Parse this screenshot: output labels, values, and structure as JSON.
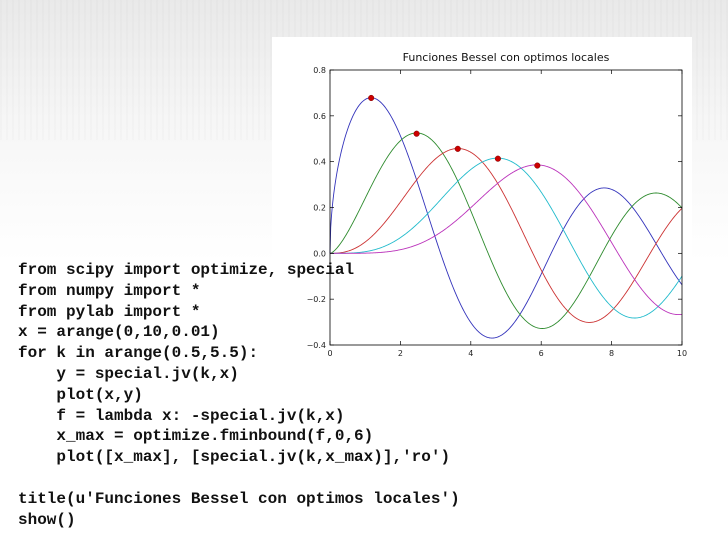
{
  "code_lines": [
    "from scipy import optimize, special",
    "from numpy import *",
    "from pylab import *",
    "x = arange(0,10,0.01)",
    "for k in arange(0.5,5.5):",
    "    y = special.jv(k,x)",
    "    plot(x,y)",
    "    f = lambda x: -special.jv(k,x)",
    "    x_max = optimize.fminbound(f,0,6)",
    "    plot([x_max], [special.jv(k,x_max)],'ro')",
    "",
    "title(u'Funciones Bessel con optimos locales')",
    "show()"
  ],
  "chart_data": {
    "type": "line",
    "title": "Funciones Bessel con optimos locales",
    "xlabel": "",
    "ylabel": "",
    "xlim": [
      0,
      10
    ],
    "ylim": [
      -0.4,
      0.8
    ],
    "xticks": [
      "0",
      "2",
      "4",
      "6",
      "8",
      "10"
    ],
    "yticks": [
      "−0.4",
      "−0.2",
      "0.0",
      "0.2",
      "0.4",
      "0.6",
      "0.8"
    ],
    "grid": false,
    "series": [
      {
        "order": 0.5,
        "color": "#3333bb"
      },
      {
        "order": 1.5,
        "color": "#2e8b2e"
      },
      {
        "order": 2.5,
        "color": "#cc3333"
      },
      {
        "order": 3.5,
        "color": "#22bbcc"
      },
      {
        "order": 4.5,
        "color": "#bb33bb"
      }
    ],
    "maxima": [
      {
        "x": 1.17,
        "y": 0.678
      },
      {
        "x": 2.46,
        "y": 0.522
      },
      {
        "x": 3.63,
        "y": 0.456
      },
      {
        "x": 4.77,
        "y": 0.413
      },
      {
        "x": 5.89,
        "y": 0.383
      }
    ],
    "marker_color": "#cc0000"
  }
}
